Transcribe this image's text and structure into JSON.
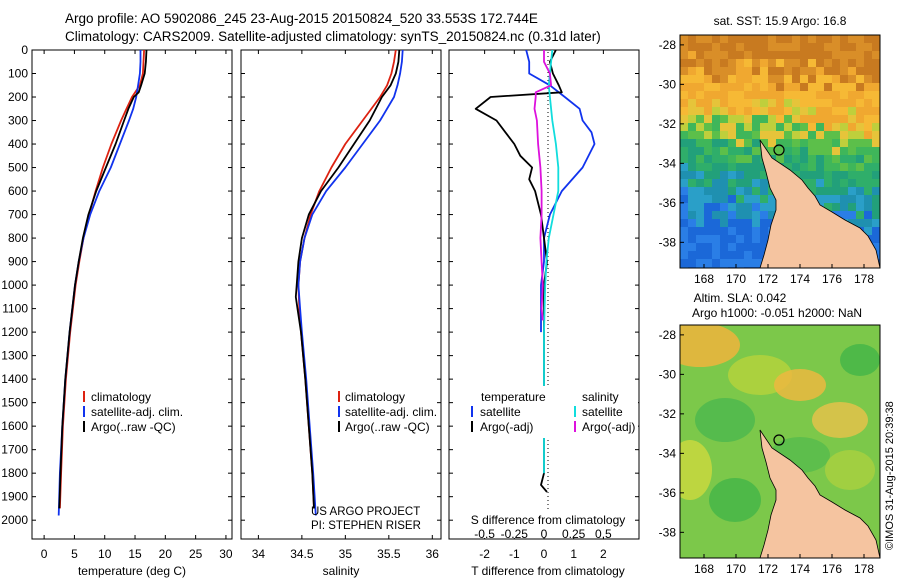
{
  "header": {
    "line1": "Argo profile: AO 5902086_245 23-Aug-2015 20150824_520 33.553S 172.744E",
    "line2": "Climatology: CARS2009. Satellite-adjusted climatology: synTS_20150824.nc (0.31d later)"
  },
  "colors": {
    "climatology": "#dd2211",
    "satellite": "#1133ee",
    "argo": "#000000",
    "salinity_satellite": "#11dddd",
    "salinity_argo": "#dd11dd",
    "land": "#f5c4a0"
  },
  "project_credit": {
    "line1": "US ARGO PROJECT",
    "line2": "PI: STEPHEN RISER"
  },
  "side_stamp": "©IMOS 31-Aug-2015 20:39:38",
  "chart_data": [
    {
      "id": "temperature",
      "type": "line",
      "xlabel": "temperature (deg C)",
      "xticks": [
        0,
        5,
        10,
        15,
        20,
        25,
        30
      ],
      "xlim": [
        -2,
        31
      ],
      "ylim": [
        0,
        2080
      ],
      "yticks": [
        0,
        100,
        200,
        300,
        400,
        500,
        600,
        700,
        800,
        900,
        1000,
        1100,
        1200,
        1300,
        1400,
        1500,
        1600,
        1700,
        1800,
        1900,
        2000
      ],
      "legend": [
        "climatology",
        "satellite-adj. clim.",
        "Argo(..raw -QC)"
      ],
      "series": [
        {
          "name": "climatology",
          "color": "#dd2211",
          "depth": [
            0,
            50,
            100,
            150,
            200,
            250,
            300,
            400,
            500,
            600,
            700,
            800,
            900,
            1000,
            1200,
            1400,
            1600,
            1800,
            1950
          ],
          "values": [
            16.5,
            16.4,
            16.3,
            15.8,
            14.5,
            13.6,
            12.7,
            11.1,
            9.7,
            8.5,
            7.4,
            6.5,
            5.8,
            5.2,
            4.3,
            3.6,
            3.1,
            2.8,
            2.6
          ]
        },
        {
          "name": "satellite-adj. clim.",
          "color": "#1133ee",
          "depth": [
            0,
            50,
            100,
            150,
            200,
            250,
            300,
            400,
            500,
            600,
            700,
            800,
            900,
            1000,
            1200,
            1400,
            1600,
            1800,
            1980
          ],
          "values": [
            15.9,
            15.9,
            15.8,
            15.5,
            15.2,
            14.7,
            14.0,
            12.5,
            11.0,
            9.1,
            7.6,
            6.5,
            5.7,
            5.1,
            4.2,
            3.5,
            3.0,
            2.6,
            2.4
          ]
        },
        {
          "name": "Argo(..raw -QC)",
          "color": "#000000",
          "depth": [
            0,
            50,
            100,
            150,
            180,
            200,
            250,
            300,
            400,
            500,
            600,
            700,
            800,
            900,
            1000,
            1200,
            1400,
            1600,
            1800,
            1950
          ],
          "values": [
            16.9,
            16.8,
            16.6,
            16.0,
            15.6,
            14.8,
            13.9,
            13.2,
            11.8,
            10.2,
            8.6,
            7.3,
            6.4,
            5.7,
            5.1,
            4.2,
            3.5,
            3.0,
            2.7,
            2.5
          ]
        }
      ]
    },
    {
      "id": "salinity",
      "type": "line",
      "xlabel": "salinity",
      "xticks": [
        34,
        34.5,
        35,
        35.5,
        36
      ],
      "xlim": [
        33.8,
        36.1
      ],
      "ylim": [
        0,
        2080
      ],
      "legend": [
        "climatology",
        "satellite-adj. clim.",
        "Argo(..raw -QC)"
      ],
      "series": [
        {
          "name": "climatology",
          "color": "#dd2211",
          "depth": [
            0,
            50,
            100,
            150,
            200,
            300,
            400,
            500,
            600,
            700,
            800,
            900,
            1000,
            1100,
            1200,
            1400,
            1600,
            1800,
            1950
          ],
          "values": [
            35.58,
            35.56,
            35.53,
            35.48,
            35.4,
            35.2,
            35.0,
            34.84,
            34.7,
            34.6,
            34.53,
            34.48,
            34.46,
            34.47,
            34.49,
            34.54,
            34.58,
            34.62,
            34.64
          ]
        },
        {
          "name": "satellite-adj. clim.",
          "color": "#1133ee",
          "depth": [
            0,
            50,
            100,
            150,
            200,
            300,
            400,
            500,
            600,
            700,
            800,
            900,
            1000,
            1100,
            1200,
            1400,
            1600,
            1800,
            1980
          ],
          "values": [
            35.66,
            35.65,
            35.63,
            35.6,
            35.56,
            35.4,
            35.2,
            35.0,
            34.78,
            34.62,
            34.53,
            34.48,
            34.46,
            34.48,
            34.5,
            34.55,
            34.59,
            34.63,
            34.66
          ]
        },
        {
          "name": "Argo(..raw -QC)",
          "color": "#000000",
          "depth": [
            0,
            50,
            100,
            150,
            200,
            300,
            400,
            500,
            600,
            700,
            800,
            900,
            1000,
            1050,
            1100,
            1200,
            1400,
            1600,
            1800,
            1950
          ],
          "values": [
            35.62,
            35.61,
            35.58,
            35.52,
            35.42,
            35.28,
            35.1,
            34.92,
            34.72,
            34.58,
            34.5,
            34.46,
            34.44,
            34.43,
            34.45,
            34.49,
            34.54,
            34.58,
            34.62,
            34.64
          ]
        }
      ]
    },
    {
      "id": "difference",
      "type": "line",
      "xlabel_t": "T difference from climatology",
      "xticks_t": [
        -2,
        -1,
        0,
        1,
        2
      ],
      "xlabel_s": "S difference from climatology",
      "xticks_s": [
        "-0.5",
        "-0.25",
        "0",
        "0.25",
        "0.5"
      ],
      "xlim": [
        -3.2,
        3.2
      ],
      "legend_titles": [
        "temperature",
        "salinity"
      ],
      "legend": [
        "satellite",
        "Argo(-adj)",
        "satellite",
        "Argo(-adj)"
      ],
      "series": [
        {
          "name": "temperature satellite",
          "color": "#1133ee",
          "depth": [
            0,
            50,
            100,
            150,
            200,
            250,
            300,
            350,
            400,
            500,
            600,
            700,
            800,
            900,
            1000,
            1100,
            1200
          ],
          "values": [
            -0.6,
            -0.5,
            -0.5,
            0.2,
            0.7,
            1.2,
            1.3,
            1.6,
            1.7,
            1.3,
            0.6,
            0.2,
            0.0,
            0.0,
            -0.1,
            -0.1,
            -0.1
          ]
        },
        {
          "name": "temperature Argo(-adj)",
          "color": "#000000",
          "depth": [
            0,
            50,
            100,
            150,
            180,
            200,
            250,
            300,
            350,
            400,
            450,
            500,
            550,
            600,
            700,
            800,
            900,
            1000,
            1100,
            1200,
            1400,
            1600,
            1800,
            1850,
            1880
          ],
          "values": [
            0.4,
            0.2,
            0.3,
            0.5,
            0.6,
            -1.8,
            -2.3,
            -1.6,
            -1.3,
            -1.0,
            -0.8,
            -0.4,
            -0.5,
            -0.3,
            -0.1,
            0.0,
            0.1,
            0.0,
            0.0,
            0.0,
            0.0,
            0.0,
            0.0,
            -0.1,
            0.1
          ]
        },
        {
          "name": "salinity satellite",
          "color": "#11dddd",
          "depth": [
            0,
            50,
            100,
            150,
            200,
            300,
            400,
            500,
            600,
            700,
            800,
            900,
            1000,
            1200,
            1400,
            1600,
            1800
          ],
          "values": [
            0.07,
            0.06,
            0.05,
            0.04,
            0.05,
            0.07,
            0.1,
            0.12,
            0.12,
            0.08,
            0.04,
            0.02,
            0.01,
            0.0,
            0.0,
            0.0,
            0.0
          ]
        },
        {
          "name": "salinity Argo(-adj)",
          "color": "#dd11dd",
          "depth": [
            0,
            50,
            100,
            150,
            180,
            200,
            250,
            300,
            400,
            500,
            600,
            700,
            800,
            900,
            1000,
            1100,
            1150
          ],
          "values": [
            0.0,
            0.0,
            0.05,
            0.06,
            -0.07,
            -0.07,
            -0.08,
            -0.06,
            -0.05,
            -0.03,
            -0.02,
            -0.02,
            -0.03,
            -0.02,
            -0.01,
            -0.02,
            -0.01
          ]
        }
      ]
    },
    {
      "id": "sst_map",
      "type": "heatmap",
      "title": "sat. SST: 15.9 Argo: 16.8",
      "xticks": [
        168,
        170,
        172,
        174,
        176,
        178
      ],
      "yticks": [
        -28,
        -30,
        -32,
        -34,
        -36,
        -38
      ],
      "xlim": [
        166.5,
        179
      ],
      "ylim": [
        -39.3,
        -27.5
      ],
      "float_position": [
        172.744,
        -33.553
      ]
    },
    {
      "id": "sla_map",
      "type": "heatmap",
      "title_line1": "Altim. SLA: 0.042",
      "title_line2": "Argo h1000: -0.051 h2000: NaN",
      "xticks": [
        168,
        170,
        172,
        174,
        176,
        178
      ],
      "yticks": [
        -28,
        -30,
        -32,
        -34,
        -36,
        -38
      ],
      "xlim": [
        166.5,
        179
      ],
      "ylim": [
        -39.3,
        -27.5
      ],
      "float_position": [
        172.744,
        -33.553
      ]
    }
  ]
}
